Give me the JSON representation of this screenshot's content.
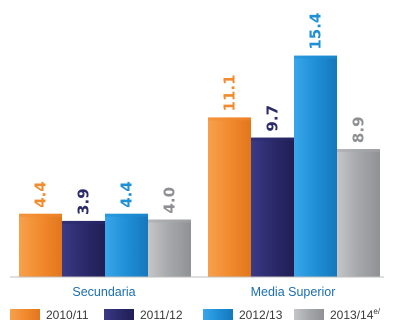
{
  "chart_data": {
    "type": "bar",
    "categories": [
      "Secundaria",
      "Media Superior"
    ],
    "series": [
      {
        "name": "2010/11",
        "values": [
          4.4,
          11.1
        ],
        "labels": [
          "4.4",
          "11.1"
        ]
      },
      {
        "name": "2011/12",
        "values": [
          3.9,
          9.7
        ],
        "labels": [
          "3.9",
          "9.7"
        ]
      },
      {
        "name": "2012/13",
        "values": [
          4.4,
          15.4
        ],
        "labels": [
          "4.4",
          "15.4"
        ]
      },
      {
        "name": "2013/14",
        "values": [
          4.0,
          8.9
        ],
        "labels": [
          "4.0",
          "8.9"
        ],
        "superscript": "e/"
      }
    ],
    "ylim": [
      0,
      16
    ],
    "grid": false,
    "legend": "bottom",
    "colors": [
      "#f28a2e",
      "#2b2a6b",
      "#1f8fd6",
      "#a5a7aa"
    ],
    "label_colors": [
      "#f28a2e",
      "#2b2a6b",
      "#1f8fd6",
      "#8d8f92"
    ],
    "category_color": "#1b6fb0"
  }
}
